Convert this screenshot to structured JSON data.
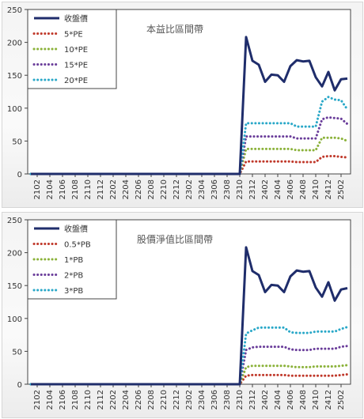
{
  "chart_data": [
    {
      "type": "line",
      "title": "本益比區間帶",
      "xlabel": "",
      "ylabel": "",
      "ylim": [
        0,
        250
      ],
      "yticks": [
        0,
        50,
        100,
        150,
        200,
        250
      ],
      "grid": false,
      "legend_position": "top-left",
      "x": [
        "2101",
        "2102",
        "2103",
        "2104",
        "2105",
        "2106",
        "2107",
        "2108",
        "2109",
        "2110",
        "2111",
        "2112",
        "2201",
        "2202",
        "2203",
        "2204",
        "2205",
        "2206",
        "2207",
        "2208",
        "2209",
        "2210",
        "2211",
        "2212",
        "2301",
        "2302",
        "2303",
        "2304",
        "2305",
        "2306",
        "2307",
        "2308",
        "2309",
        "2310",
        "2311",
        "2312",
        "2401",
        "2402",
        "2403",
        "2404",
        "2405",
        "2406",
        "2407",
        "2408",
        "2409",
        "2410",
        "2411",
        "2412",
        "2501",
        "2502",
        "2503"
      ],
      "x_tick_labels": [
        "2102",
        "2104",
        "2106",
        "2108",
        "2110",
        "2112",
        "2202",
        "2204",
        "2206",
        "2208",
        "2210",
        "2212",
        "2302",
        "2304",
        "2306",
        "2308",
        "2310",
        "2312",
        "2402",
        "2404",
        "2406",
        "2408",
        "2410",
        "2412",
        "2502"
      ],
      "series": [
        {
          "name": "收盤價",
          "color": "#1f2d6b",
          "style": "solid",
          "values": [
            0,
            0,
            0,
            0,
            0,
            0,
            0,
            0,
            0,
            0,
            0,
            0,
            0,
            0,
            0,
            0,
            0,
            0,
            0,
            0,
            0,
            0,
            0,
            0,
            0,
            0,
            0,
            0,
            0,
            0,
            0,
            0,
            0,
            0,
            208,
            172,
            166,
            140,
            151,
            150,
            140,
            164,
            173,
            171,
            172,
            147,
            133,
            155,
            127,
            144,
            145
          ]
        },
        {
          "name": "5*PE",
          "color": "#c0392b",
          "style": "dotted",
          "values": [
            0,
            0,
            0,
            0,
            0,
            0,
            0,
            0,
            0,
            0,
            0,
            0,
            0,
            0,
            0,
            0,
            0,
            0,
            0,
            0,
            0,
            0,
            0,
            0,
            0,
            0,
            0,
            0,
            0,
            0,
            0,
            0,
            0,
            0,
            19,
            19,
            19,
            19,
            19,
            19,
            19,
            19,
            18,
            18,
            18,
            18,
            26,
            27,
            27,
            26,
            25
          ]
        },
        {
          "name": "10*PE",
          "color": "#8bb23a",
          "style": "dotted",
          "values": [
            0,
            0,
            0,
            0,
            0,
            0,
            0,
            0,
            0,
            0,
            0,
            0,
            0,
            0,
            0,
            0,
            0,
            0,
            0,
            0,
            0,
            0,
            0,
            0,
            0,
            0,
            0,
            0,
            0,
            0,
            0,
            0,
            0,
            0,
            38,
            38,
            38,
            38,
            38,
            38,
            38,
            38,
            36,
            36,
            36,
            36,
            55,
            55,
            55,
            54,
            50
          ]
        },
        {
          "name": "15*PE",
          "color": "#6a3d9a",
          "style": "dotted",
          "values": [
            0,
            0,
            0,
            0,
            0,
            0,
            0,
            0,
            0,
            0,
            0,
            0,
            0,
            0,
            0,
            0,
            0,
            0,
            0,
            0,
            0,
            0,
            0,
            0,
            0,
            0,
            0,
            0,
            0,
            0,
            0,
            0,
            0,
            0,
            57,
            57,
            57,
            57,
            57,
            57,
            57,
            57,
            54,
            54,
            54,
            54,
            83,
            86,
            85,
            84,
            76
          ]
        },
        {
          "name": "20*PE",
          "color": "#2aa8c8",
          "style": "dotted",
          "values": [
            0,
            0,
            0,
            0,
            0,
            0,
            0,
            0,
            0,
            0,
            0,
            0,
            0,
            0,
            0,
            0,
            0,
            0,
            0,
            0,
            0,
            0,
            0,
            0,
            0,
            0,
            0,
            0,
            0,
            0,
            0,
            0,
            0,
            0,
            77,
            77,
            77,
            77,
            77,
            77,
            77,
            77,
            72,
            72,
            72,
            72,
            110,
            117,
            113,
            112,
            98
          ]
        }
      ]
    },
    {
      "type": "line",
      "title": "股價淨值比區間帶",
      "xlabel": "",
      "ylabel": "",
      "ylim": [
        0,
        250
      ],
      "yticks": [
        0,
        50,
        100,
        150,
        200,
        250
      ],
      "grid": false,
      "legend_position": "top-left",
      "x": [
        "2101",
        "2102",
        "2103",
        "2104",
        "2105",
        "2106",
        "2107",
        "2108",
        "2109",
        "2110",
        "2111",
        "2112",
        "2201",
        "2202",
        "2203",
        "2204",
        "2205",
        "2206",
        "2207",
        "2208",
        "2209",
        "2210",
        "2211",
        "2212",
        "2301",
        "2302",
        "2303",
        "2304",
        "2305",
        "2306",
        "2307",
        "2308",
        "2309",
        "2310",
        "2311",
        "2312",
        "2401",
        "2402",
        "2403",
        "2404",
        "2405",
        "2406",
        "2407",
        "2408",
        "2409",
        "2410",
        "2411",
        "2412",
        "2501",
        "2502",
        "2503"
      ],
      "x_tick_labels": [
        "2102",
        "2104",
        "2106",
        "2108",
        "2110",
        "2112",
        "2202",
        "2204",
        "2206",
        "2208",
        "2210",
        "2212",
        "2302",
        "2304",
        "2306",
        "2308",
        "2310",
        "2312",
        "2402",
        "2404",
        "2406",
        "2408",
        "2410",
        "2412",
        "2502"
      ],
      "series": [
        {
          "name": "收盤價",
          "color": "#1f2d6b",
          "style": "solid",
          "values": [
            0,
            0,
            0,
            0,
            0,
            0,
            0,
            0,
            0,
            0,
            0,
            0,
            0,
            0,
            0,
            0,
            0,
            0,
            0,
            0,
            0,
            0,
            0,
            0,
            0,
            0,
            0,
            0,
            0,
            0,
            0,
            0,
            0,
            0,
            208,
            172,
            166,
            140,
            151,
            150,
            140,
            164,
            173,
            171,
            172,
            147,
            133,
            155,
            127,
            144,
            146
          ]
        },
        {
          "name": "0.5*PB",
          "color": "#c0392b",
          "style": "dotted",
          "values": [
            0,
            0,
            0,
            0,
            0,
            0,
            0,
            0,
            0,
            0,
            0,
            0,
            0,
            0,
            0,
            0,
            0,
            0,
            0,
            0,
            0,
            0,
            0,
            0,
            0,
            0,
            0,
            0,
            0,
            0,
            0,
            0,
            0,
            0,
            13,
            14,
            14,
            14,
            14,
            14,
            14,
            13,
            13,
            13,
            13,
            13,
            13,
            13,
            13,
            14,
            15
          ]
        },
        {
          "name": "1*PB",
          "color": "#8bb23a",
          "style": "dotted",
          "values": [
            0,
            0,
            0,
            0,
            0,
            0,
            0,
            0,
            0,
            0,
            0,
            0,
            0,
            0,
            0,
            0,
            0,
            0,
            0,
            0,
            0,
            0,
            0,
            0,
            0,
            0,
            0,
            0,
            0,
            0,
            0,
            0,
            0,
            0,
            26,
            28,
            28,
            28,
            28,
            28,
            28,
            27,
            26,
            26,
            26,
            27,
            27,
            27,
            27,
            28,
            29
          ]
        },
        {
          "name": "2*PB",
          "color": "#6a3d9a",
          "style": "dotted",
          "values": [
            0,
            0,
            0,
            0,
            0,
            0,
            0,
            0,
            0,
            0,
            0,
            0,
            0,
            0,
            0,
            0,
            0,
            0,
            0,
            0,
            0,
            0,
            0,
            0,
            0,
            0,
            0,
            0,
            0,
            0,
            0,
            0,
            0,
            0,
            52,
            56,
            57,
            57,
            57,
            57,
            57,
            53,
            52,
            52,
            52,
            54,
            54,
            54,
            54,
            57,
            58
          ]
        },
        {
          "name": "3*PB",
          "color": "#2aa8c8",
          "style": "dotted",
          "values": [
            0,
            0,
            0,
            0,
            0,
            0,
            0,
            0,
            0,
            0,
            0,
            0,
            0,
            0,
            0,
            0,
            0,
            0,
            0,
            0,
            0,
            0,
            0,
            0,
            0,
            0,
            0,
            0,
            0,
            0,
            0,
            0,
            0,
            0,
            77,
            82,
            86,
            86,
            86,
            86,
            86,
            79,
            78,
            78,
            78,
            80,
            80,
            80,
            80,
            84,
            87
          ]
        }
      ]
    }
  ]
}
